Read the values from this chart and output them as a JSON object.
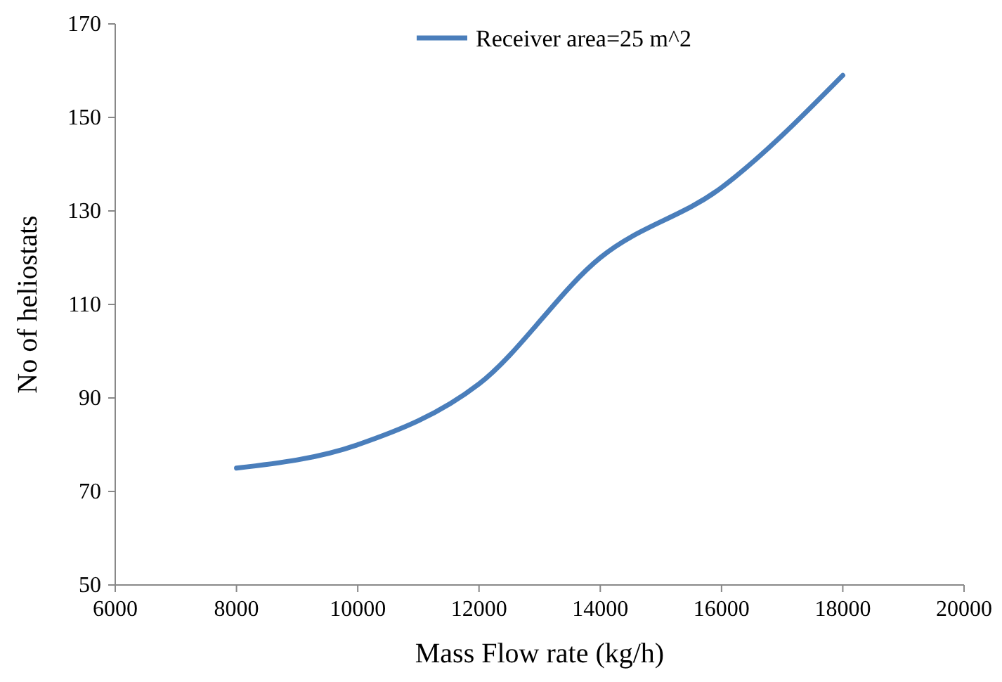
{
  "chart_data": {
    "type": "line",
    "xlabel": "Mass Flow rate (kg/h)",
    "ylabel": "No of heliostats",
    "x": [
      8000,
      10000,
      12000,
      14000,
      16000,
      18000
    ],
    "series": [
      {
        "name": "Receiver area=25 m^2",
        "color": "#4a7ebb",
        "values": [
          75,
          80,
          93,
          120,
          135,
          159
        ]
      }
    ],
    "xlim": [
      6000,
      20000
    ],
    "xticks": [
      6000,
      8000,
      10000,
      12000,
      14000,
      16000,
      18000,
      20000
    ],
    "ylim": [
      50,
      170
    ],
    "yticks": [
      50,
      70,
      90,
      110,
      130,
      150,
      170
    ],
    "grid": false,
    "legend": "top",
    "marker": "none",
    "line_style": "solid"
  }
}
